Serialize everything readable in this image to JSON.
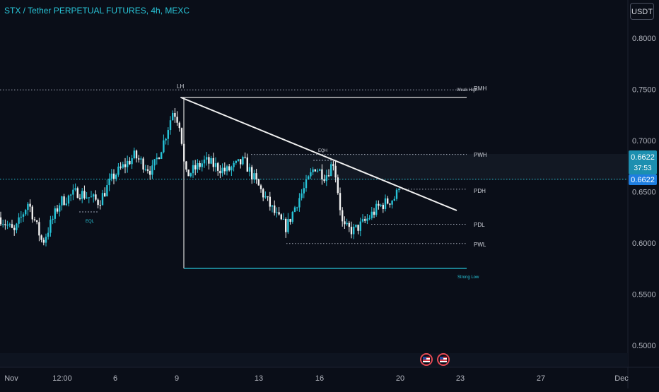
{
  "header": {
    "title": "STX / Tether PERPETUAL FUTURES, 4h, MEXC",
    "currency_button": "USDT"
  },
  "colors": {
    "background": "#0a0e18",
    "up": "#27c4d8",
    "down": "#f0f0f0",
    "text_muted": "#8c93a3",
    "accent": "#1e96dc"
  },
  "price_label": {
    "price": "0.6622",
    "countdown": "37:53",
    "last": "0.6622"
  },
  "annotations": {
    "lh": "LH",
    "weak_high": "Weak High",
    "rmh": "RMH",
    "pwh": "PWH",
    "eqh": "EQH",
    "pdh": "PDH",
    "pdl": "PDL",
    "pwl": "PWL",
    "eql": "EQL",
    "strong_low": "Strong Low"
  },
  "events": [
    {
      "icon": "us-flag-icon"
    },
    {
      "icon": "us-flag-icon"
    }
  ],
  "chart_data": {
    "type": "candlestick",
    "title": "STX / Tether PERPETUAL FUTURES, 4h, MEXC",
    "y_ticks": [
      "0.8000",
      "0.7500",
      "0.7000",
      "0.6500",
      "0.6000",
      "0.5500",
      "0.5000"
    ],
    "y_tick_values": [
      0.8,
      0.75,
      0.7,
      0.65,
      0.6,
      0.55,
      0.5
    ],
    "x_ticks": [
      "Nov",
      "12:00",
      "6",
      "9",
      "13",
      "16",
      "20",
      "23",
      "27",
      "Dec"
    ],
    "ylim": [
      0.48,
      0.835
    ],
    "current_price": 0.6622,
    "levels": {
      "weak_high": 0.7495,
      "lh_box_top": 0.7415,
      "pwh": 0.6865,
      "pdh": 0.6525,
      "pdl": 0.6183,
      "pwl": 0.5995,
      "strong_low": 0.576
    },
    "trendline": {
      "from": 0.7415,
      "to": 0.631
    },
    "grid": false
  }
}
